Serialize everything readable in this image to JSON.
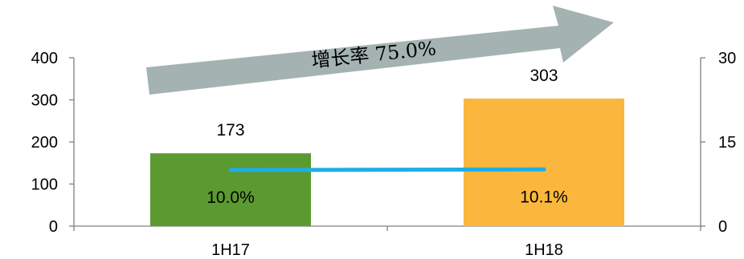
{
  "chart_data": {
    "type": "bar",
    "categories": [
      "1H17",
      "1H18"
    ],
    "series": [
      {
        "axis": "left",
        "values": [
          173,
          303
        ],
        "colors": [
          "#5b9a31",
          "#fbb73d"
        ]
      },
      {
        "axis": "right",
        "type": "line",
        "values": [
          10.0,
          10.1
        ],
        "color": "#1eaee6"
      }
    ],
    "bar_labels": [
      "173",
      "303"
    ],
    "line_labels": [
      "10.0%",
      "10.1%"
    ],
    "left_axis": {
      "ylim": [
        0,
        400
      ],
      "ticks": [
        "0",
        "100",
        "200",
        "300",
        "400"
      ]
    },
    "right_axis": {
      "ylim": [
        0,
        30
      ],
      "ticks": [
        "0",
        "15",
        "30"
      ]
    },
    "annotation": "增长率 75.0%"
  }
}
